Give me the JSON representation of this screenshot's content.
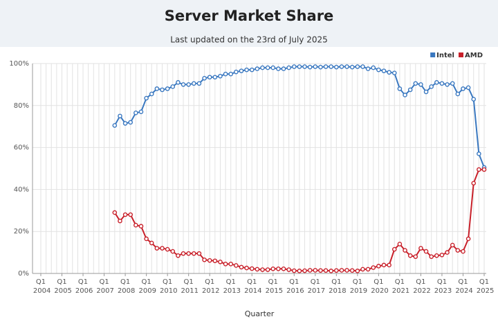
{
  "chart_data": {
    "type": "line",
    "title": "Server Market Share",
    "subtitle": "Last updated on the 23rd of July 2025",
    "x_label": "Quarter",
    "categories": [
      "Q1 2004",
      null,
      null,
      null,
      "Q1 2005",
      null,
      null,
      null,
      "Q1 2006",
      null,
      null,
      null,
      "Q1 2007",
      null,
      null,
      null,
      "Q1 2008",
      null,
      null,
      null,
      "Q1 2009",
      null,
      null,
      null,
      "Q1 2010",
      null,
      null,
      null,
      "Q1 2011",
      null,
      null,
      null,
      "Q1 2012",
      null,
      null,
      null,
      "Q1 2013",
      null,
      null,
      null,
      "Q1 2014",
      null,
      null,
      null,
      "Q1 2015",
      null,
      null,
      null,
      "Q1 2016",
      null,
      null,
      null,
      "Q1 2017",
      null,
      null,
      null,
      "Q1 2018",
      null,
      null,
      null,
      "Q1 2019",
      null,
      null,
      null,
      "Q1 2020",
      null,
      null,
      null,
      "Q1 2021",
      null,
      null,
      null,
      "Q1 2022",
      null,
      null,
      null,
      "Q1 2023",
      null,
      null,
      null,
      "Q1 2024",
      null,
      null,
      null,
      "Q1 2025"
    ],
    "series": [
      {
        "name": "Intel",
        "color": "#3a78c0",
        "values": [
          null,
          null,
          null,
          null,
          null,
          null,
          null,
          null,
          null,
          null,
          null,
          null,
          null,
          null,
          70.5,
          75,
          71.5,
          72,
          76.5,
          77,
          83.5,
          85.5,
          88,
          87.5,
          88,
          89,
          91,
          90,
          90,
          90.5,
          90.5,
          93,
          93.5,
          93.5,
          94,
          95,
          95,
          96,
          96.5,
          97,
          97,
          97.5,
          98,
          98,
          98,
          97.5,
          97.5,
          98,
          98.5,
          98.5,
          98.5,
          98.3,
          98.5,
          98.3,
          98.5,
          98.5,
          98.3,
          98.5,
          98.5,
          98.3,
          98.5,
          98.5,
          97.5,
          98,
          97,
          96.5,
          95.8,
          95.5,
          88,
          85,
          87.5,
          90.5,
          90,
          86.5,
          89,
          91,
          90.5,
          90,
          90.5,
          85.5,
          88,
          88.5,
          83,
          57,
          50.5
        ]
      },
      {
        "name": "AMD",
        "color": "#c8202a",
        "values": [
          null,
          null,
          null,
          null,
          null,
          null,
          null,
          null,
          null,
          null,
          null,
          null,
          null,
          null,
          29,
          25,
          28,
          28,
          23,
          22.5,
          16.5,
          14.5,
          12,
          12,
          11.5,
          10.5,
          8.5,
          9.5,
          9.5,
          9.5,
          9.5,
          6.5,
          6.2,
          6,
          5.5,
          4.5,
          4.5,
          3.8,
          3,
          2.6,
          2.3,
          2,
          1.8,
          1.8,
          2.2,
          2.2,
          2.2,
          1.8,
          1.3,
          1.2,
          1.3,
          1.5,
          1.5,
          1.4,
          1.4,
          1.2,
          1.4,
          1.5,
          1.5,
          1.4,
          1.2,
          2,
          2,
          2.8,
          3.5,
          4,
          4,
          11.5,
          14,
          11,
          8.5,
          8,
          12,
          10.5,
          8,
          8.5,
          8.8,
          10,
          13.5,
          11,
          10.5,
          16.5,
          43,
          49.5,
          49.5
        ]
      }
    ],
    "ylim": [
      0,
      100
    ],
    "yticks": [
      {
        "value": 0,
        "label": "0%"
      },
      {
        "value": 20,
        "label": "20%"
      },
      {
        "value": 40,
        "label": "40%"
      },
      {
        "value": 60,
        "label": "60%"
      },
      {
        "value": 80,
        "label": "80%"
      },
      {
        "value": 100,
        "label": "100%"
      }
    ],
    "grid": true,
    "legend": "top-right"
  }
}
